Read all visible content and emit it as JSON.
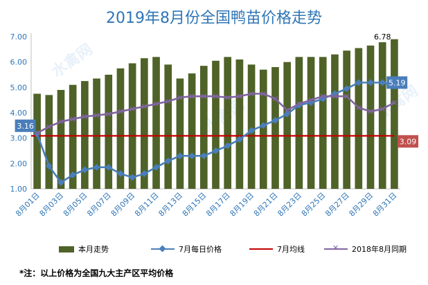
{
  "title": "2019年8月份全国鸭苗价格走势",
  "footnote": "*注：以上价格为全国九大主产区平均价格",
  "watermark": "水禽网",
  "chart_data": {
    "type": "bar",
    "categories": [
      "8月01日",
      "8月02日",
      "8月03日",
      "8月04日",
      "8月05日",
      "8月06日",
      "8月07日",
      "8月08日",
      "8月09日",
      "8月10日",
      "8月11日",
      "8月12日",
      "8月13日",
      "8月14日",
      "8月15日",
      "8月16日",
      "8月17日",
      "8月18日",
      "8月19日",
      "8月20日",
      "8月21日",
      "8月22日",
      "8月23日",
      "8月24日",
      "8月25日",
      "8月26日",
      "8月27日",
      "8月28日",
      "8月29日",
      "8月30日",
      "8月31日"
    ],
    "tick_labels": [
      "8月01日",
      "8月03日",
      "8月05日",
      "8月07日",
      "8月09日",
      "8月11日",
      "8月13日",
      "8月15日",
      "8月17日",
      "8月19日",
      "8月21日",
      "8月23日",
      "8月25日",
      "8月27日",
      "8月29日",
      "8月31日"
    ],
    "ylim": [
      1.0,
      7.0
    ],
    "yticks": [
      "1.00",
      "2.00",
      "3.00",
      "4.00",
      "5.00",
      "6.00",
      "7.00"
    ],
    "series": [
      {
        "name": "本月走势",
        "kind": "bar",
        "color": "#4f6228",
        "values": [
          4.75,
          4.7,
          4.9,
          5.1,
          5.25,
          5.35,
          5.5,
          5.75,
          5.95,
          6.15,
          6.2,
          5.9,
          5.35,
          5.55,
          5.85,
          6.05,
          6.2,
          6.1,
          5.9,
          5.7,
          5.8,
          6.0,
          6.2,
          6.2,
          6.2,
          6.3,
          6.45,
          6.55,
          6.65,
          6.78,
          6.9
        ]
      },
      {
        "name": "7月每日价格",
        "kind": "line",
        "color": "#4a7ebb",
        "values": [
          3.16,
          1.9,
          1.25,
          1.55,
          1.75,
          1.85,
          1.85,
          1.6,
          1.45,
          1.6,
          1.85,
          2.1,
          2.3,
          2.3,
          2.3,
          2.5,
          2.7,
          2.95,
          3.3,
          3.5,
          3.7,
          3.95,
          4.3,
          4.4,
          4.55,
          4.75,
          4.95,
          5.19,
          5.19,
          5.19,
          5.05
        ]
      },
      {
        "name": "7月均线",
        "kind": "hline",
        "color": "#c00000",
        "value": 3.09
      },
      {
        "name": "2018年8月同期",
        "kind": "line",
        "color": "#8064a2",
        "values": [
          3.2,
          3.45,
          3.65,
          3.75,
          3.85,
          3.9,
          3.95,
          4.05,
          4.15,
          4.25,
          4.35,
          4.45,
          4.6,
          4.65,
          4.65,
          4.65,
          4.6,
          4.65,
          4.75,
          4.75,
          4.55,
          4.1,
          4.35,
          4.5,
          4.65,
          4.65,
          4.65,
          4.2,
          4.05,
          4.15,
          4.4
        ]
      }
    ],
    "annotations": [
      {
        "text": "3.16",
        "series": "7月每日价格",
        "index": 0,
        "box_color": "#4a7ebb"
      },
      {
        "text": "5.19",
        "series": "7月每日价格",
        "index": 29,
        "box_color": "#4a7ebb"
      },
      {
        "text": "3.09",
        "series": "7月均线",
        "index": 30,
        "box_color": "#c0504d"
      },
      {
        "text": "6.78",
        "series": "本月走势",
        "index": 29
      }
    ],
    "grid": false,
    "legend_position": "bottom"
  }
}
